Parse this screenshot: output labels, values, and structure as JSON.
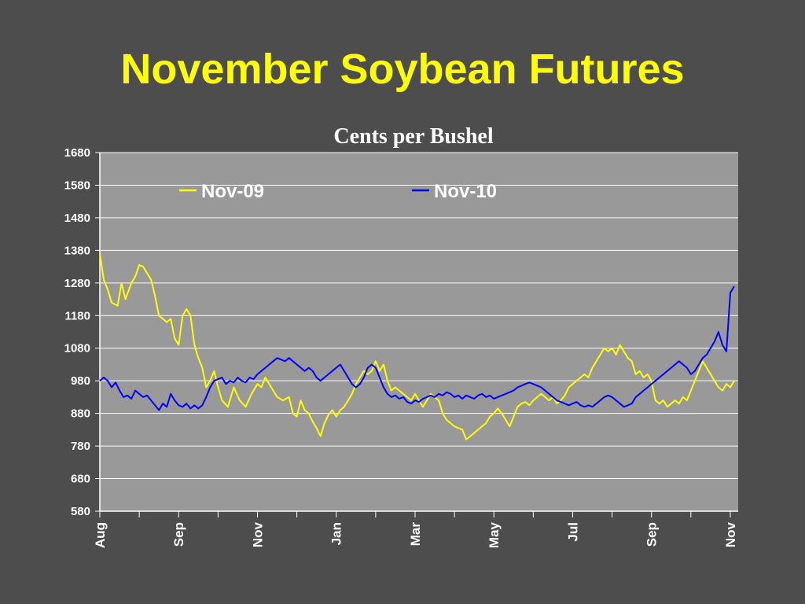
{
  "title": "November Soybean Futures",
  "chart_data": {
    "type": "line",
    "title": "Cents per Bushel",
    "xlabel": "",
    "ylabel": "",
    "ylim": [
      580,
      1680
    ],
    "yticks": [
      580,
      680,
      780,
      880,
      980,
      1080,
      1180,
      1280,
      1380,
      1480,
      1580,
      1680
    ],
    "x_ticks": [
      "Aug",
      "Sep",
      "Nov",
      "Jan",
      "Mar",
      "May",
      "Jul",
      "Sep",
      "Nov"
    ],
    "x_range": [
      0,
      16.2
    ],
    "grid": true,
    "legend_position": "top",
    "series": [
      {
        "name": "Nov-09",
        "color": "#ffff00",
        "points": [
          [
            0,
            1370
          ],
          [
            0.1,
            1290
          ],
          [
            0.2,
            1260
          ],
          [
            0.3,
            1220
          ],
          [
            0.45,
            1210
          ],
          [
            0.55,
            1280
          ],
          [
            0.65,
            1230
          ],
          [
            0.8,
            1280
          ],
          [
            0.9,
            1300
          ],
          [
            1.0,
            1335
          ],
          [
            1.1,
            1330
          ],
          [
            1.2,
            1310
          ],
          [
            1.3,
            1290
          ],
          [
            1.4,
            1240
          ],
          [
            1.5,
            1180
          ],
          [
            1.6,
            1170
          ],
          [
            1.7,
            1160
          ],
          [
            1.8,
            1170
          ],
          [
            1.9,
            1110
          ],
          [
            2.0,
            1090
          ],
          [
            2.1,
            1180
          ],
          [
            2.2,
            1200
          ],
          [
            2.3,
            1180
          ],
          [
            2.4,
            1090
          ],
          [
            2.5,
            1050
          ],
          [
            2.6,
            1020
          ],
          [
            2.7,
            960
          ],
          [
            2.8,
            980
          ],
          [
            2.9,
            1010
          ],
          [
            3.0,
            960
          ],
          [
            3.1,
            920
          ],
          [
            3.25,
            900
          ],
          [
            3.4,
            960
          ],
          [
            3.55,
            920
          ],
          [
            3.7,
            900
          ],
          [
            3.85,
            940
          ],
          [
            4.0,
            970
          ],
          [
            4.1,
            960
          ],
          [
            4.2,
            990
          ],
          [
            4.35,
            960
          ],
          [
            4.5,
            930
          ],
          [
            4.65,
            920
          ],
          [
            4.8,
            930
          ],
          [
            4.9,
            880
          ],
          [
            5.0,
            870
          ],
          [
            5.1,
            920
          ],
          [
            5.2,
            890
          ],
          [
            5.3,
            880
          ],
          [
            5.4,
            855
          ],
          [
            5.5,
            835
          ],
          [
            5.6,
            810
          ],
          [
            5.7,
            850
          ],
          [
            5.8,
            875
          ],
          [
            5.9,
            890
          ],
          [
            6.0,
            870
          ],
          [
            6.1,
            890
          ],
          [
            6.2,
            900
          ],
          [
            6.3,
            920
          ],
          [
            6.4,
            940
          ],
          [
            6.5,
            970
          ],
          [
            6.6,
            990
          ],
          [
            6.7,
            1010
          ],
          [
            6.8,
            1000
          ],
          [
            6.9,
            1010
          ],
          [
            7.0,
            1040
          ],
          [
            7.1,
            1010
          ],
          [
            7.2,
            1030
          ],
          [
            7.3,
            980
          ],
          [
            7.4,
            950
          ],
          [
            7.5,
            960
          ],
          [
            7.6,
            950
          ],
          [
            7.7,
            940
          ],
          [
            7.8,
            930
          ],
          [
            7.9,
            920
          ],
          [
            8.0,
            940
          ],
          [
            8.1,
            920
          ],
          [
            8.2,
            900
          ],
          [
            8.3,
            920
          ],
          [
            8.4,
            940
          ],
          [
            8.5,
            930
          ],
          [
            8.6,
            920
          ],
          [
            8.7,
            880
          ],
          [
            8.8,
            860
          ],
          [
            8.9,
            850
          ],
          [
            9.0,
            840
          ],
          [
            9.1,
            835
          ],
          [
            9.2,
            830
          ],
          [
            9.3,
            800
          ],
          [
            9.4,
            810
          ],
          [
            9.5,
            820
          ],
          [
            9.6,
            830
          ],
          [
            9.7,
            840
          ],
          [
            9.8,
            850
          ],
          [
            9.9,
            870
          ],
          [
            10.0,
            880
          ],
          [
            10.1,
            895
          ],
          [
            10.2,
            880
          ],
          [
            10.3,
            860
          ],
          [
            10.4,
            840
          ],
          [
            10.5,
            870
          ],
          [
            10.6,
            900
          ],
          [
            10.7,
            910
          ],
          [
            10.8,
            915
          ],
          [
            10.9,
            905
          ],
          [
            11.0,
            920
          ],
          [
            11.1,
            930
          ],
          [
            11.2,
            940
          ],
          [
            11.3,
            930
          ],
          [
            11.4,
            920
          ],
          [
            11.5,
            930
          ],
          [
            11.6,
            910
          ],
          [
            11.7,
            920
          ],
          [
            11.8,
            935
          ],
          [
            11.9,
            960
          ],
          [
            12.0,
            970
          ],
          [
            12.1,
            980
          ],
          [
            12.2,
            990
          ],
          [
            12.3,
            1000
          ],
          [
            12.4,
            990
          ],
          [
            12.5,
            1020
          ],
          [
            12.6,
            1040
          ],
          [
            12.7,
            1060
          ],
          [
            12.8,
            1080
          ],
          [
            12.9,
            1070
          ],
          [
            13.0,
            1080
          ],
          [
            13.1,
            1060
          ],
          [
            13.2,
            1090
          ],
          [
            13.3,
            1070
          ],
          [
            13.4,
            1050
          ],
          [
            13.5,
            1040
          ],
          [
            13.6,
            1000
          ],
          [
            13.7,
            1010
          ],
          [
            13.8,
            990
          ],
          [
            13.9,
            1000
          ],
          [
            14.0,
            980
          ],
          [
            14.1,
            920
          ],
          [
            14.2,
            910
          ],
          [
            14.3,
            920
          ],
          [
            14.4,
            900
          ],
          [
            14.5,
            910
          ],
          [
            14.6,
            920
          ],
          [
            14.7,
            910
          ],
          [
            14.8,
            930
          ],
          [
            14.9,
            920
          ],
          [
            15.0,
            950
          ],
          [
            15.1,
            980
          ],
          [
            15.2,
            1010
          ],
          [
            15.3,
            1040
          ],
          [
            15.4,
            1020
          ],
          [
            15.5,
            1000
          ],
          [
            15.6,
            980
          ],
          [
            15.7,
            960
          ],
          [
            15.8,
            950
          ],
          [
            15.9,
            970
          ],
          [
            16.0,
            960
          ],
          [
            16.1,
            980
          ]
        ]
      },
      {
        "name": "Nov-10",
        "color": "#0000ff",
        "points": [
          [
            0,
            980
          ],
          [
            0.1,
            990
          ],
          [
            0.2,
            980
          ],
          [
            0.3,
            960
          ],
          [
            0.4,
            975
          ],
          [
            0.5,
            950
          ],
          [
            0.6,
            930
          ],
          [
            0.7,
            935
          ],
          [
            0.8,
            925
          ],
          [
            0.9,
            950
          ],
          [
            1.0,
            940
          ],
          [
            1.1,
            930
          ],
          [
            1.2,
            935
          ],
          [
            1.3,
            920
          ],
          [
            1.4,
            905
          ],
          [
            1.5,
            890
          ],
          [
            1.6,
            910
          ],
          [
            1.7,
            900
          ],
          [
            1.8,
            940
          ],
          [
            1.9,
            920
          ],
          [
            2.0,
            905
          ],
          [
            2.1,
            900
          ],
          [
            2.2,
            910
          ],
          [
            2.3,
            895
          ],
          [
            2.4,
            905
          ],
          [
            2.5,
            895
          ],
          [
            2.6,
            905
          ],
          [
            2.7,
            930
          ],
          [
            2.8,
            960
          ],
          [
            2.9,
            980
          ],
          [
            3.0,
            985
          ],
          [
            3.1,
            990
          ],
          [
            3.2,
            970
          ],
          [
            3.3,
            980
          ],
          [
            3.4,
            975
          ],
          [
            3.5,
            990
          ],
          [
            3.6,
            980
          ],
          [
            3.7,
            975
          ],
          [
            3.8,
            990
          ],
          [
            3.9,
            985
          ],
          [
            4.0,
            1000
          ],
          [
            4.1,
            1010
          ],
          [
            4.2,
            1020
          ],
          [
            4.3,
            1030
          ],
          [
            4.4,
            1040
          ],
          [
            4.5,
            1050
          ],
          [
            4.6,
            1045
          ],
          [
            4.7,
            1040
          ],
          [
            4.8,
            1050
          ],
          [
            4.9,
            1040
          ],
          [
            5.0,
            1030
          ],
          [
            5.1,
            1020
          ],
          [
            5.2,
            1010
          ],
          [
            5.3,
            1020
          ],
          [
            5.4,
            1010
          ],
          [
            5.5,
            990
          ],
          [
            5.6,
            980
          ],
          [
            5.7,
            990
          ],
          [
            5.8,
            1000
          ],
          [
            5.9,
            1010
          ],
          [
            6.0,
            1020
          ],
          [
            6.1,
            1030
          ],
          [
            6.2,
            1010
          ],
          [
            6.3,
            990
          ],
          [
            6.4,
            970
          ],
          [
            6.5,
            960
          ],
          [
            6.6,
            970
          ],
          [
            6.7,
            990
          ],
          [
            6.8,
            1020
          ],
          [
            6.9,
            1030
          ],
          [
            7.0,
            1020
          ],
          [
            7.1,
            990
          ],
          [
            7.2,
            960
          ],
          [
            7.3,
            940
          ],
          [
            7.4,
            930
          ],
          [
            7.5,
            935
          ],
          [
            7.6,
            925
          ],
          [
            7.7,
            930
          ],
          [
            7.8,
            915
          ],
          [
            7.9,
            910
          ],
          [
            8.0,
            920
          ],
          [
            8.1,
            915
          ],
          [
            8.2,
            925
          ],
          [
            8.3,
            930
          ],
          [
            8.4,
            935
          ],
          [
            8.5,
            930
          ],
          [
            8.6,
            940
          ],
          [
            8.7,
            935
          ],
          [
            8.8,
            945
          ],
          [
            8.9,
            940
          ],
          [
            9.0,
            930
          ],
          [
            9.1,
            935
          ],
          [
            9.2,
            925
          ],
          [
            9.3,
            935
          ],
          [
            9.4,
            930
          ],
          [
            9.5,
            925
          ],
          [
            9.6,
            935
          ],
          [
            9.7,
            940
          ],
          [
            9.8,
            930
          ],
          [
            9.9,
            935
          ],
          [
            10.0,
            925
          ],
          [
            10.1,
            930
          ],
          [
            10.2,
            935
          ],
          [
            10.3,
            940
          ],
          [
            10.4,
            945
          ],
          [
            10.5,
            950
          ],
          [
            10.6,
            960
          ],
          [
            10.7,
            965
          ],
          [
            10.8,
            970
          ],
          [
            10.9,
            975
          ],
          [
            11.0,
            970
          ],
          [
            11.1,
            965
          ],
          [
            11.2,
            960
          ],
          [
            11.3,
            950
          ],
          [
            11.4,
            940
          ],
          [
            11.5,
            930
          ],
          [
            11.6,
            920
          ],
          [
            11.7,
            915
          ],
          [
            11.8,
            910
          ],
          [
            11.9,
            905
          ],
          [
            12.0,
            910
          ],
          [
            12.1,
            915
          ],
          [
            12.2,
            905
          ],
          [
            12.3,
            900
          ],
          [
            12.4,
            905
          ],
          [
            12.5,
            900
          ],
          [
            12.6,
            910
          ],
          [
            12.7,
            920
          ],
          [
            12.8,
            930
          ],
          [
            12.9,
            935
          ],
          [
            13.0,
            930
          ],
          [
            13.1,
            920
          ],
          [
            13.2,
            910
          ],
          [
            13.3,
            900
          ],
          [
            13.4,
            905
          ],
          [
            13.5,
            910
          ],
          [
            13.6,
            930
          ],
          [
            13.7,
            940
          ],
          [
            13.8,
            950
          ],
          [
            13.9,
            960
          ],
          [
            14.0,
            970
          ],
          [
            14.1,
            980
          ],
          [
            14.2,
            990
          ],
          [
            14.3,
            1000
          ],
          [
            14.4,
            1010
          ],
          [
            14.5,
            1020
          ],
          [
            14.6,
            1030
          ],
          [
            14.7,
            1040
          ],
          [
            14.8,
            1030
          ],
          [
            14.9,
            1020
          ],
          [
            15.0,
            1000
          ],
          [
            15.1,
            1010
          ],
          [
            15.2,
            1030
          ],
          [
            15.3,
            1050
          ],
          [
            15.4,
            1060
          ],
          [
            15.5,
            1080
          ],
          [
            15.6,
            1100
          ],
          [
            15.7,
            1130
          ],
          [
            15.8,
            1090
          ],
          [
            15.9,
            1070
          ],
          [
            16.0,
            1250
          ],
          [
            16.1,
            1270
          ]
        ]
      }
    ]
  }
}
